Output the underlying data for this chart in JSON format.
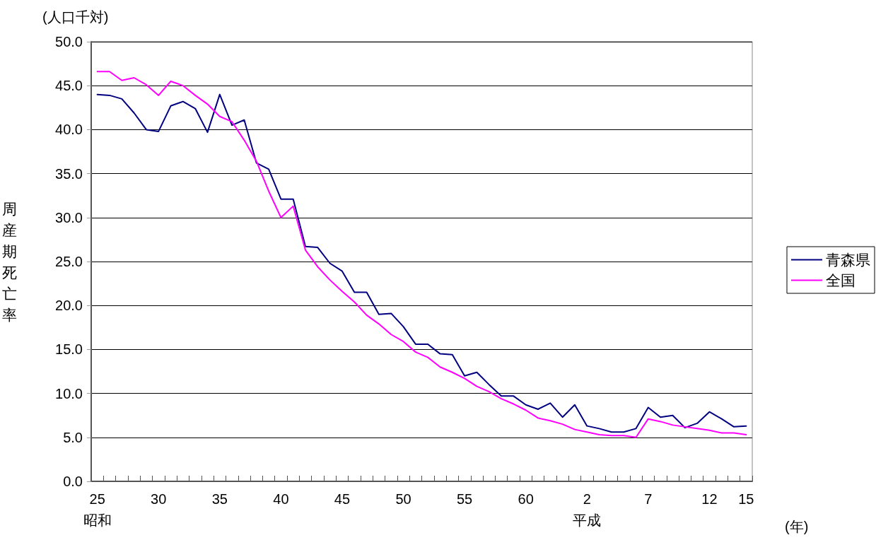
{
  "chart_data": {
    "type": "line",
    "ylabel": "周産期死亡率",
    "annotations": [
      "(人口千対)",
      "(年)"
    ],
    "categories": [
      "25\n昭和",
      null,
      null,
      null,
      null,
      "30",
      null,
      null,
      null,
      null,
      "35",
      null,
      null,
      null,
      null,
      "40",
      null,
      null,
      null,
      null,
      "45",
      null,
      null,
      null,
      null,
      "50",
      null,
      null,
      null,
      null,
      "55",
      null,
      null,
      null,
      null,
      "60",
      null,
      null,
      null,
      null,
      "2\n平成",
      null,
      null,
      null,
      null,
      "7",
      null,
      null,
      null,
      null,
      "12",
      null,
      null,
      "15"
    ],
    "series": [
      {
        "name": "青森県",
        "color": "#000080",
        "values": [
          44.0,
          43.9,
          43.5,
          41.9,
          40.0,
          39.8,
          42.7,
          43.2,
          42.4,
          39.7,
          44.0,
          40.5,
          41.1,
          36.2,
          35.5,
          32.1,
          32.1,
          26.7,
          26.6,
          24.8,
          23.9,
          21.5,
          21.5,
          19.0,
          19.1,
          17.6,
          15.6,
          15.6,
          14.5,
          14.4,
          12.0,
          12.4,
          11.0,
          9.7,
          9.7,
          8.7,
          8.2,
          8.9,
          7.3,
          8.7,
          6.3,
          6.0,
          5.6,
          5.6,
          6.0,
          8.4,
          7.3,
          7.5,
          6.1,
          6.6,
          7.9,
          7.1,
          6.2,
          6.3
        ]
      },
      {
        "name": "全国",
        "color": "#ff00ff",
        "values": [
          46.6,
          46.6,
          45.6,
          45.9,
          45.1,
          43.9,
          45.5,
          45.0,
          43.9,
          42.9,
          41.5,
          40.9,
          38.8,
          36.4,
          33.0,
          30.0,
          31.3,
          26.3,
          24.4,
          22.9,
          21.6,
          20.4,
          18.9,
          17.9,
          16.7,
          15.9,
          14.7,
          14.1,
          13.0,
          12.4,
          11.7,
          10.8,
          10.2,
          9.4,
          8.8,
          8.1,
          7.2,
          6.9,
          6.5,
          5.9,
          5.6,
          5.3,
          5.2,
          5.2,
          5.0,
          7.1,
          6.8,
          6.4,
          6.2,
          6.0,
          5.8,
          5.5,
          5.5,
          5.3
        ]
      }
    ],
    "ylim": [
      0,
      50
    ],
    "yticks": [
      {
        "value": 0,
        "label": "0.0"
      },
      {
        "value": 5,
        "label": "5.0"
      },
      {
        "value": 10,
        "label": "10.0"
      },
      {
        "value": 15,
        "label": "15.0"
      },
      {
        "value": 20,
        "label": "20.0"
      },
      {
        "value": 25,
        "label": "25.0"
      },
      {
        "value": 30,
        "label": "30.0"
      },
      {
        "value": 35,
        "label": "35.0"
      },
      {
        "value": 40,
        "label": "40.0"
      },
      {
        "value": 45,
        "label": "45.0"
      },
      {
        "value": 50,
        "label": "50.0"
      }
    ],
    "grid": "y",
    "legend": "right",
    "marker": "none",
    "line_style": "solid"
  }
}
